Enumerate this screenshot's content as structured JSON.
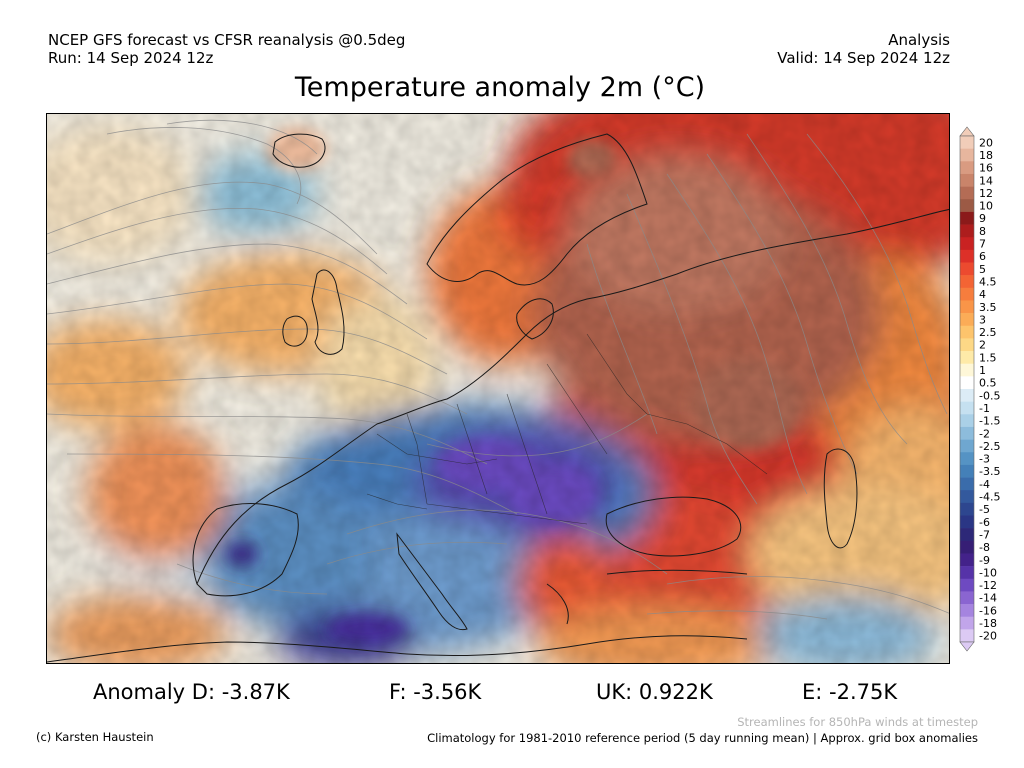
{
  "header": {
    "model": "NCEP GFS forecast vs CFSR reanalysis @0.5deg",
    "run": "Run: 14 Sep 2024 12z",
    "kind": "Analysis",
    "valid": "Valid: 14 Sep 2024 12z",
    "title": "Temperature anomaly 2m (°C)"
  },
  "legend": {
    "labels": [
      "20",
      "18",
      "16",
      "14",
      "12",
      "10",
      "9",
      "8",
      "7",
      "6",
      "5",
      "4.5",
      "4",
      "3.5",
      "3",
      "2.5",
      "2",
      "1.5",
      "1",
      "0.5",
      "-0.5",
      "-1",
      "-1.5",
      "-2",
      "-2.5",
      "-3",
      "-3.5",
      "-4",
      "-4.5",
      "-5",
      "-6",
      "-7",
      "-8",
      "-9",
      "-10",
      "-12",
      "-14",
      "-16",
      "-18",
      "-20"
    ],
    "colors": [
      "#f1cdb9",
      "#e7b69e",
      "#d99b81",
      "#c9846a",
      "#b46c55",
      "#9c5a45",
      "#8b1a1a",
      "#ad1d1d",
      "#c92222",
      "#dd3028",
      "#ec4a2f",
      "#f36434",
      "#f67d3d",
      "#f99548",
      "#fbac57",
      "#fdc46c",
      "#fdd886",
      "#feeaa8",
      "#fef7d8",
      "#ffffff",
      "#dcecf6",
      "#c5e0f0",
      "#aad0e7",
      "#8dbcdc",
      "#6fa7d0",
      "#5593c4",
      "#4480b8",
      "#3a6cab",
      "#33599d",
      "#2d468f",
      "#2a3685",
      "#2d2878",
      "#361e75",
      "#43228a",
      "#5633a8",
      "#6e4ac1",
      "#8a65d1",
      "#a584df",
      "#c1a5ea",
      "#dccaf4"
    ]
  },
  "stats": {
    "d": "Anomaly D: -3.87K",
    "f": "F: -3.56K",
    "uk": "UK: 0.922K",
    "e": "E: -2.75K"
  },
  "footer": {
    "streamlines": "Streamlines for 850hPa winds at timestep",
    "credit": "(c) Karsten Haustein",
    "climatology": "Climatology for 1981-2010 reference period (5 day running mean) | Approx. grid box anomalies"
  }
}
